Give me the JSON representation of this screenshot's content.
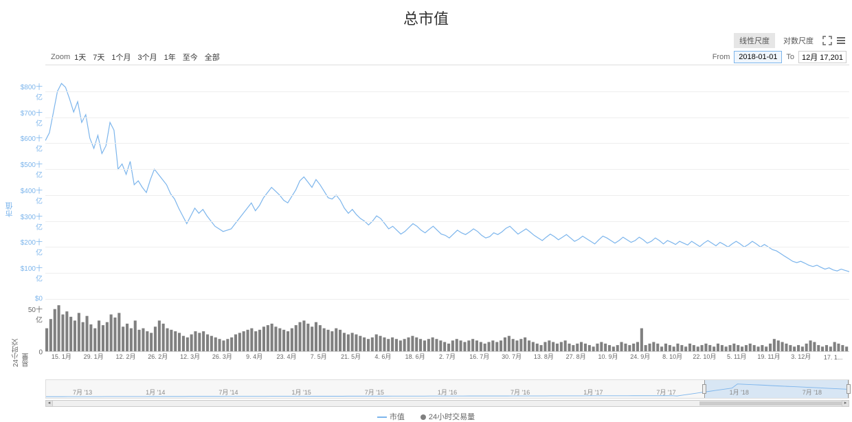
{
  "title": "总市值",
  "toolbar": {
    "linear_scale": "线性尺度",
    "log_scale": "对数尺度"
  },
  "zoom": {
    "label": "Zoom",
    "options": [
      "1天",
      "7天",
      "1个月",
      "3个月",
      "1年",
      "至今",
      "全部"
    ]
  },
  "date_range": {
    "from_label": "From",
    "from_value": "2018-01-01",
    "to_label": "To",
    "to_value": "12月 17,2018"
  },
  "main_chart": {
    "type": "line",
    "yaxis_label": "市值",
    "line_color": "#7cb5ec",
    "grid_color": "#eeeeee",
    "yticks": [
      {
        "label": "$0",
        "value": 0
      },
      {
        "label": "$100十亿",
        "value": 100
      },
      {
        "label": "$200十亿",
        "value": 200
      },
      {
        "label": "$300十亿",
        "value": 300
      },
      {
        "label": "$400十亿",
        "value": 400
      },
      {
        "label": "$500十亿",
        "value": 500
      },
      {
        "label": "$600十亿",
        "value": 600
      },
      {
        "label": "$700十亿",
        "value": 700
      },
      {
        "label": "$800十亿",
        "value": 800
      }
    ],
    "ylim": [
      0,
      900
    ],
    "series": [
      610,
      640,
      720,
      800,
      830,
      815,
      770,
      720,
      760,
      680,
      710,
      620,
      580,
      630,
      560,
      590,
      680,
      650,
      500,
      520,
      480,
      530,
      440,
      455,
      430,
      410,
      460,
      500,
      480,
      460,
      440,
      405,
      385,
      350,
      320,
      290,
      320,
      350,
      330,
      345,
      320,
      300,
      280,
      270,
      260,
      265,
      270,
      290,
      310,
      330,
      350,
      370,
      340,
      360,
      390,
      410,
      430,
      415,
      400,
      380,
      370,
      395,
      420,
      455,
      470,
      450,
      430,
      460,
      440,
      415,
      390,
      385,
      400,
      380,
      350,
      330,
      345,
      325,
      310,
      300,
      285,
      300,
      320,
      310,
      290,
      270,
      280,
      265,
      250,
      260,
      275,
      290,
      280,
      265,
      255,
      268,
      280,
      265,
      250,
      245,
      235,
      250,
      265,
      255,
      248,
      258,
      270,
      260,
      245,
      235,
      240,
      255,
      248,
      258,
      272,
      280,
      265,
      250,
      260,
      270,
      258,
      245,
      235,
      225,
      238,
      250,
      240,
      228,
      238,
      248,
      235,
      222,
      230,
      242,
      232,
      222,
      212,
      228,
      242,
      235,
      225,
      215,
      225,
      238,
      228,
      218,
      225,
      238,
      228,
      215,
      222,
      235,
      225,
      212,
      225,
      218,
      210,
      222,
      215,
      208,
      222,
      212,
      202,
      215,
      225,
      215,
      205,
      218,
      210,
      200,
      212,
      222,
      212,
      200,
      210,
      222,
      212,
      200,
      210,
      200,
      190,
      185,
      175,
      165,
      155,
      145,
      140,
      145,
      138,
      130,
      125,
      130,
      122,
      115,
      120,
      112,
      108,
      115,
      110,
      105
    ]
  },
  "volume_chart": {
    "type": "bar",
    "yaxis_label": "24小时交易量",
    "bar_color": "#808080",
    "yticks": [
      {
        "label": "0",
        "value": 0
      },
      {
        "label": "50十亿",
        "value": 50
      }
    ],
    "ylim": [
      0,
      70
    ],
    "series": [
      30,
      42,
      55,
      60,
      48,
      52,
      45,
      40,
      50,
      38,
      46,
      35,
      30,
      40,
      34,
      38,
      48,
      44,
      50,
      32,
      36,
      30,
      40,
      28,
      30,
      26,
      24,
      32,
      40,
      36,
      30,
      28,
      26,
      24,
      20,
      18,
      22,
      26,
      24,
      26,
      22,
      20,
      18,
      16,
      14,
      16,
      18,
      22,
      24,
      26,
      28,
      30,
      26,
      28,
      32,
      34,
      36,
      32,
      30,
      28,
      26,
      30,
      34,
      38,
      40,
      36,
      32,
      38,
      34,
      30,
      28,
      26,
      30,
      28,
      24,
      22,
      24,
      22,
      20,
      18,
      16,
      18,
      22,
      20,
      18,
      16,
      18,
      16,
      14,
      16,
      18,
      20,
      18,
      16,
      14,
      16,
      18,
      16,
      14,
      12,
      10,
      14,
      16,
      14,
      12,
      14,
      16,
      14,
      12,
      10,
      12,
      14,
      12,
      14,
      18,
      20,
      16,
      14,
      16,
      18,
      14,
      12,
      10,
      8,
      12,
      14,
      12,
      10,
      12,
      14,
      10,
      8,
      10,
      12,
      10,
      8,
      6,
      10,
      12,
      10,
      8,
      6,
      8,
      12,
      10,
      8,
      10,
      12,
      30,
      8,
      10,
      12,
      10,
      6,
      10,
      8,
      6,
      10,
      8,
      6,
      10,
      8,
      6,
      8,
      10,
      8,
      6,
      10,
      8,
      6,
      8,
      10,
      8,
      6,
      8,
      10,
      8,
      6,
      8,
      6,
      10,
      16,
      14,
      12,
      10,
      8,
      6,
      8,
      6,
      10,
      14,
      12,
      8,
      6,
      8,
      6,
      12,
      10,
      8,
      6
    ]
  },
  "xticks": [
    "15. 1月",
    "29. 1月",
    "12. 2月",
    "26. 2月",
    "12. 3月",
    "26. 3月",
    "9. 4月",
    "23. 4月",
    "7. 5月",
    "21. 5月",
    "4. 6月",
    "18. 6月",
    "2. 7月",
    "16. 7月",
    "30. 7月",
    "13. 8月",
    "27. 8月",
    "10. 9月",
    "24. 9月",
    "8. 10月",
    "22. 10月",
    "5. 11月",
    "19. 11月",
    "3. 12月",
    "17. 1..."
  ],
  "navigator": {
    "ticks": [
      "7月 '13",
      "1月 '14",
      "7月 '14",
      "1月 '15",
      "7月 '15",
      "1月 '16",
      "7月 '16",
      "1月 '17",
      "7月 '17",
      "1月 '18",
      "7月 '18"
    ],
    "selection_start_pct": 82,
    "selection_end_pct": 100
  },
  "legend": {
    "market_cap": "市值",
    "volume": "24小时交易量",
    "line_color": "#7cb5ec",
    "dot_color": "#808080"
  }
}
